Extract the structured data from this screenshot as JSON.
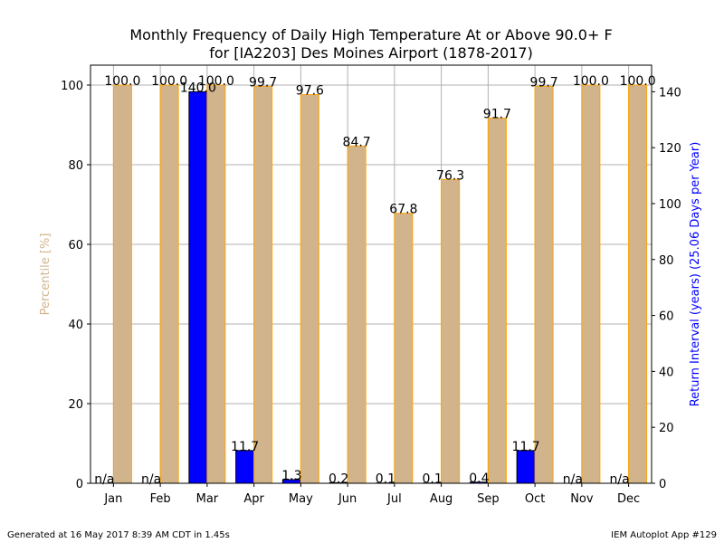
{
  "chart_data": {
    "type": "bar",
    "title": "Monthly Frequency of Daily High Temperature At or Above 90.0+ F",
    "subtitle": "for [IA2203] Des Moines Airport (1878-2017)",
    "categories": [
      "Jan",
      "Feb",
      "Mar",
      "Apr",
      "May",
      "Jun",
      "Jul",
      "Aug",
      "Sep",
      "Oct",
      "Nov",
      "Dec"
    ],
    "ylabel_left": "Percentile [%]",
    "ylabel_right": "Return Interval (years) (25.06 Days per Year)",
    "ylim_left": [
      0,
      105
    ],
    "ylim_right": [
      0,
      149.5
    ],
    "yticks_left": [
      0,
      20,
      40,
      60,
      80,
      100
    ],
    "yticks_right": [
      0,
      20,
      40,
      60,
      80,
      100,
      120,
      140
    ],
    "grid": true,
    "series": [
      {
        "axis": "right",
        "color": "#0000ff",
        "values": [
          null,
          null,
          140.0,
          11.7,
          1.3,
          0.2,
          0.1,
          0.1,
          0.4,
          11.7,
          null,
          null
        ],
        "labels": [
          "n/a",
          "n/a",
          "140.0",
          "11.7",
          "1.3",
          "0.2",
          "0.1",
          "0.1",
          "0.4",
          "11.7",
          "n/a",
          "n/a"
        ]
      },
      {
        "axis": "left",
        "color": "#d2b48c",
        "edge_color": "#ffa500",
        "values": [
          100.0,
          100.0,
          100.0,
          99.7,
          97.6,
          84.7,
          67.8,
          76.3,
          91.7,
          99.7,
          100.0,
          100.0
        ],
        "labels": [
          "100.0",
          "100.0",
          "100.0",
          "99.7",
          "97.6",
          "84.7",
          "67.8",
          "76.3",
          "91.7",
          "99.7",
          "100.0",
          "100.0"
        ]
      }
    ]
  },
  "footer": {
    "left": "Generated at 16 May 2017 8:39 AM CDT in 1.45s",
    "right": "IEM Autoplot App #129"
  }
}
